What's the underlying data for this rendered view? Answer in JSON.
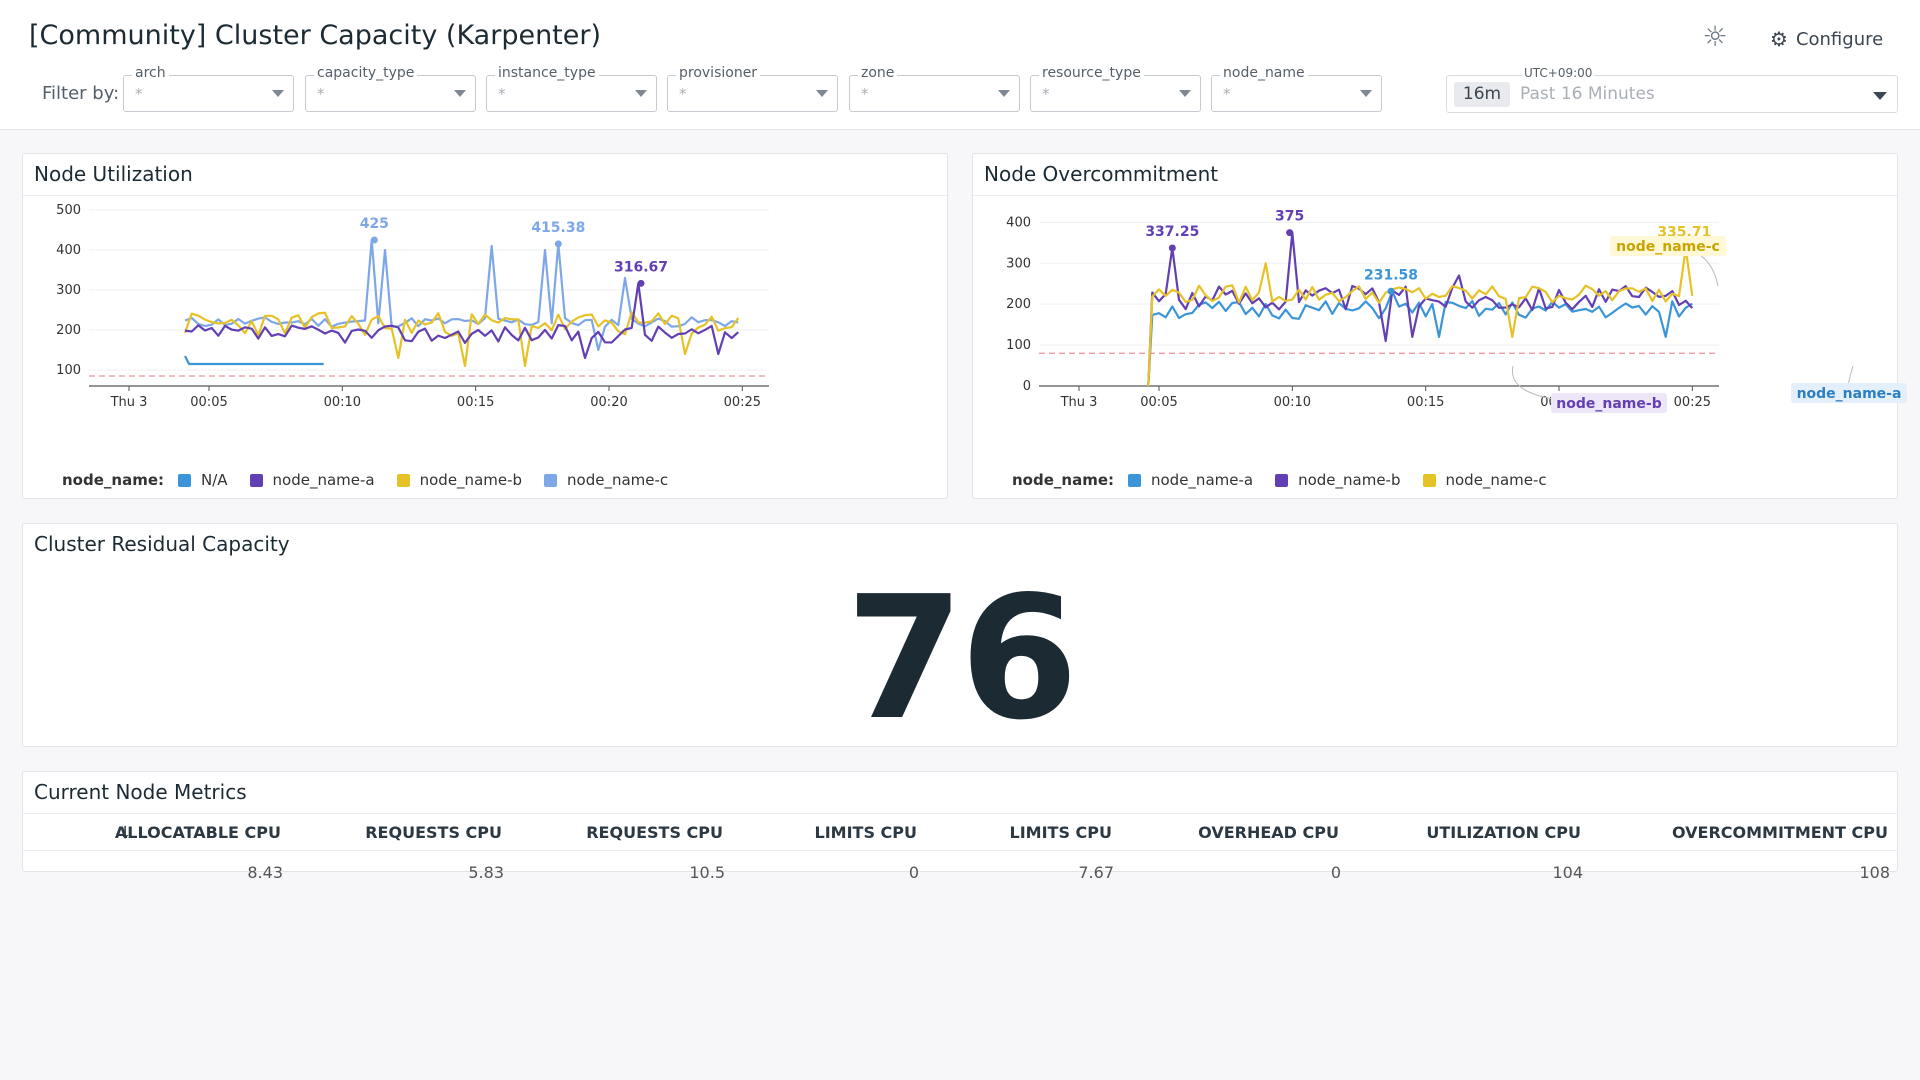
{
  "header": {
    "title": "[Community] Cluster Capacity (Karpenter)",
    "configure_label": "Configure",
    "filter_label": "Filter by:",
    "filters": [
      {
        "label": "arch",
        "value": "*"
      },
      {
        "label": "capacity_type",
        "value": "*"
      },
      {
        "label": "instance_type",
        "value": "*"
      },
      {
        "label": "provisioner",
        "value": "*"
      },
      {
        "label": "zone",
        "value": "*"
      },
      {
        "label": "resource_type",
        "value": "*"
      },
      {
        "label": "node_name",
        "value": "*"
      }
    ],
    "time": {
      "timezone": "UTC+09:00",
      "badge": "16m",
      "range": "Past 16 Minutes"
    }
  },
  "colors": {
    "na": "#3b95d8",
    "a": "#6240b3",
    "b": "#e6c227",
    "c": "#7ea7e8",
    "threshold": "#e8939a"
  },
  "node_utilization": {
    "title": "Node Utilization",
    "legend_key": "node_name:",
    "legend": [
      "N/A",
      "node_name-a",
      "node_name-b",
      "node_name-c"
    ],
    "chart_data": {
      "type": "line",
      "x_ticks": [
        "Thu 3",
        "00:05",
        "00:10",
        "00:15",
        "00:20",
        "00:25"
      ],
      "y_ticks": [
        "100",
        "200",
        "300",
        "400",
        "500"
      ],
      "ylim": [
        60,
        510
      ],
      "threshold": 85,
      "annotations": [
        {
          "text": "425",
          "series": "node_name-c",
          "x": 11.2,
          "y": 425
        },
        {
          "text": "415.38",
          "series": "node_name-c",
          "x": 18.1,
          "y": 415.38
        },
        {
          "text": "316.67",
          "series": "node_name-a",
          "x": 21.2,
          "y": 316.67
        }
      ]
    }
  },
  "node_overcommitment": {
    "title": "Node Overcommitment",
    "legend_key": "node_name:",
    "legend": [
      "node_name-a",
      "node_name-b",
      "node_name-c"
    ],
    "chart_data": {
      "type": "line",
      "x_ticks": [
        "Thu 3",
        "00:05",
        "00:10",
        "00:15",
        "00:20",
        "00:25"
      ],
      "y_ticks": [
        "0",
        "100",
        "200",
        "300",
        "400"
      ],
      "ylim": [
        0,
        440
      ],
      "threshold": 80,
      "annotations": [
        {
          "text": "337.25",
          "series": "node_name-b",
          "x": 5.5,
          "y": 337.25
        },
        {
          "text": "375",
          "series": "node_name-b",
          "x": 9.9,
          "y": 375
        },
        {
          "text": "231.58",
          "series": "node_name-a",
          "x": 13.7,
          "y": 231.58
        },
        {
          "text": "335.71",
          "series": "node_name-c",
          "x": 24.7,
          "y": 335.71
        }
      ],
      "callouts": [
        {
          "text": "node_name-c",
          "series": "node_name-c"
        },
        {
          "text": "node_name-b",
          "series": "node_name-b"
        },
        {
          "text": "node_name-a",
          "series": "node_name-a"
        }
      ]
    }
  },
  "residual": {
    "title": "Cluster Residual Capacity",
    "value": "76"
  },
  "metrics": {
    "title": "Current Node Metrics",
    "columns": [
      "ALLOCATABLE CPU",
      "REQUESTS CPU",
      "REQUESTS CPU",
      "LIMITS CPU",
      "LIMITS CPU",
      "OVERHEAD CPU",
      "UTILIZATION CPU",
      "OVERCOMMITMENT CPU"
    ],
    "row": [
      "8.43",
      "5.83",
      "10.5",
      "0",
      "7.67",
      "0",
      "104",
      "108"
    ]
  }
}
